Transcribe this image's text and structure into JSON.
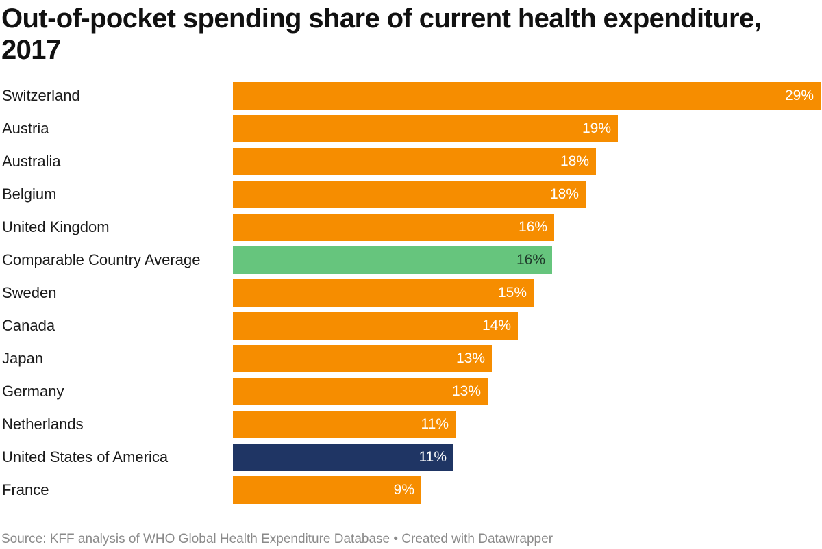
{
  "footer": {
    "text": "Source: KFF analysis of WHO Global Health Expenditure Database • Created with Datawrapper"
  },
  "chart_data": {
    "type": "bar",
    "orientation": "horizontal",
    "title": "Out-of-pocket spending share of current health expenditure, 2017",
    "categories": [
      "Switzerland",
      "Austria",
      "Australia",
      "Belgium",
      "United Kingdom",
      "Comparable Country Average",
      "Sweden",
      "Canada",
      "Japan",
      "Germany",
      "Netherlands",
      "United States of America",
      "France"
    ],
    "values": [
      29.3,
      19.2,
      18.1,
      17.6,
      16.0,
      15.9,
      15.0,
      14.2,
      12.9,
      12.7,
      11.1,
      11.0,
      9.4
    ],
    "value_labels": [
      "29%",
      "19%",
      "18%",
      "18%",
      "16%",
      "16%",
      "15%",
      "14%",
      "13%",
      "13%",
      "11%",
      "11%",
      "9%"
    ],
    "xlim": [
      0,
      29.3
    ],
    "grid": false,
    "colors": {
      "default": "#f68d00",
      "Comparable Country Average": "#66c57d",
      "United States of America": "#1f3564"
    },
    "label_colors": {
      "default": "#ffffff",
      "Comparable Country Average": "#1f3a2a",
      "United States of America": "#ffffff"
    }
  }
}
